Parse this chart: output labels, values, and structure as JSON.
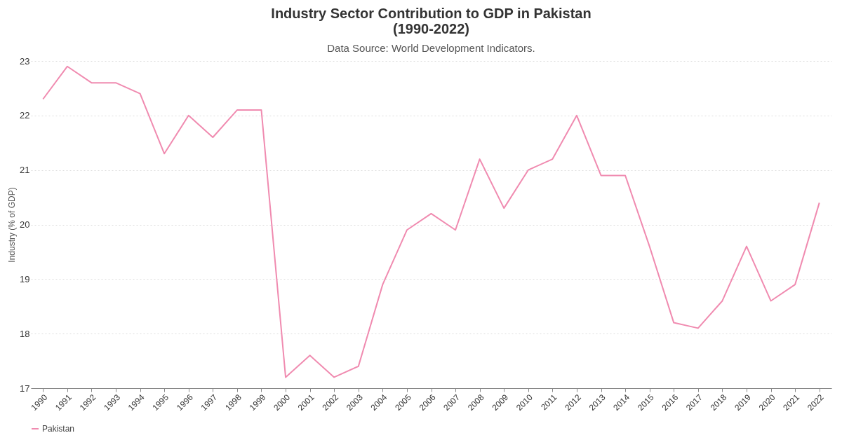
{
  "chart_data": {
    "type": "line",
    "title": "Industry Sector Contribution to GDP in Pakistan\n(1990-2022)",
    "subtitle": "Data Source: World Development Indicators.",
    "ylabel": "Industry (% of GDP)",
    "categories": [
      "1990",
      "1991",
      "1992",
      "1993",
      "1994",
      "1995",
      "1996",
      "1997",
      "1998",
      "1999",
      "2000",
      "2001",
      "2002",
      "2003",
      "2004",
      "2005",
      "2006",
      "2007",
      "2008",
      "2009",
      "2010",
      "2011",
      "2012",
      "2013",
      "2014",
      "2015",
      "2016",
      "2017",
      "2018",
      "2019",
      "2020",
      "2021",
      "2022"
    ],
    "series": [
      {
        "name": "Pakistan",
        "color": "#f08bb0",
        "values": [
          22.3,
          22.9,
          22.6,
          22.6,
          22.4,
          21.3,
          22.0,
          21.6,
          22.1,
          22.1,
          17.2,
          17.6,
          17.2,
          17.4,
          18.9,
          19.9,
          20.2,
          19.9,
          21.2,
          20.3,
          21.0,
          21.2,
          22.0,
          20.9,
          20.9,
          19.6,
          18.2,
          18.1,
          18.6,
          19.6,
          18.6,
          18.9,
          20.4
        ]
      }
    ],
    "ylim": [
      17,
      23
    ],
    "yticks": [
      17,
      18,
      19,
      20,
      21,
      22,
      23
    ],
    "grid": "y",
    "legend": "bottom",
    "marker": "none",
    "line_style": "solid"
  }
}
